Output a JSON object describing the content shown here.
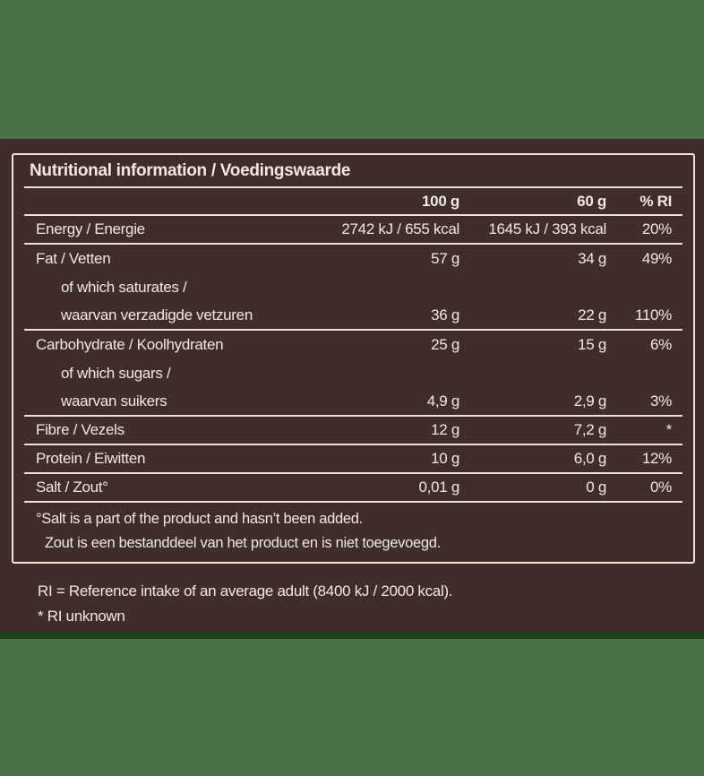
{
  "panel": {
    "title": "Nutritional information / Voedingswaarde",
    "columns": [
      "100 g",
      "60 g",
      "% RI"
    ],
    "rows": [
      {
        "label": "Energy / Energie",
        "v100": "2742 kJ / 655 kcal",
        "v60": "1645 kJ / 393 kcal",
        "ri": "20%",
        "indent": false,
        "rule": true
      },
      {
        "label": "Fat / Vetten",
        "v100": "57 g",
        "v60": "34 g",
        "ri": "49%",
        "indent": false,
        "rule": false
      },
      {
        "label": "of which saturates /",
        "v100": "",
        "v60": "",
        "ri": "",
        "indent": true,
        "rule": false
      },
      {
        "label": "waarvan verzadigde vetzuren",
        "v100": "36 g",
        "v60": "22 g",
        "ri": "110%",
        "indent": true,
        "rule": true
      },
      {
        "label": "Carbohydrate / Koolhydraten",
        "v100": "25 g",
        "v60": "15 g",
        "ri": "6%",
        "indent": false,
        "rule": false
      },
      {
        "label": "of which sugars /",
        "v100": "",
        "v60": "",
        "ri": "",
        "indent": true,
        "rule": false
      },
      {
        "label": "waarvan suikers",
        "v100": "4,9 g",
        "v60": "2,9 g",
        "ri": "3%",
        "indent": true,
        "rule": true
      },
      {
        "label": "Fibre / Vezels",
        "v100": "12 g",
        "v60": "7,2 g",
        "ri": "*",
        "indent": false,
        "rule": true
      },
      {
        "label": "Protein / Eiwitten",
        "v100": "10 g",
        "v60": "6,0 g",
        "ri": "12%",
        "indent": false,
        "rule": true
      },
      {
        "label": "Salt / Zout°",
        "v100": "0,01 g",
        "v60": "0 g",
        "ri": "0%",
        "indent": false,
        "rule": true
      }
    ],
    "footnotes": [
      "°Salt is a part of the product and hasn’t been added.",
      "Zout is een bestanddeel van het product en is niet toegevoegd."
    ]
  },
  "footer": {
    "line1": "RI = Reference intake of an average adult (8400 kJ / 2000 kcal).",
    "line2": "* RI unknown"
  },
  "colors": {
    "background_green": "#4a7049",
    "divider_dark_green": "#1f421e",
    "panel_brown": "#3e2d2b",
    "text_cream": "#f2e8df",
    "rule_cream": "#ece1d8"
  }
}
